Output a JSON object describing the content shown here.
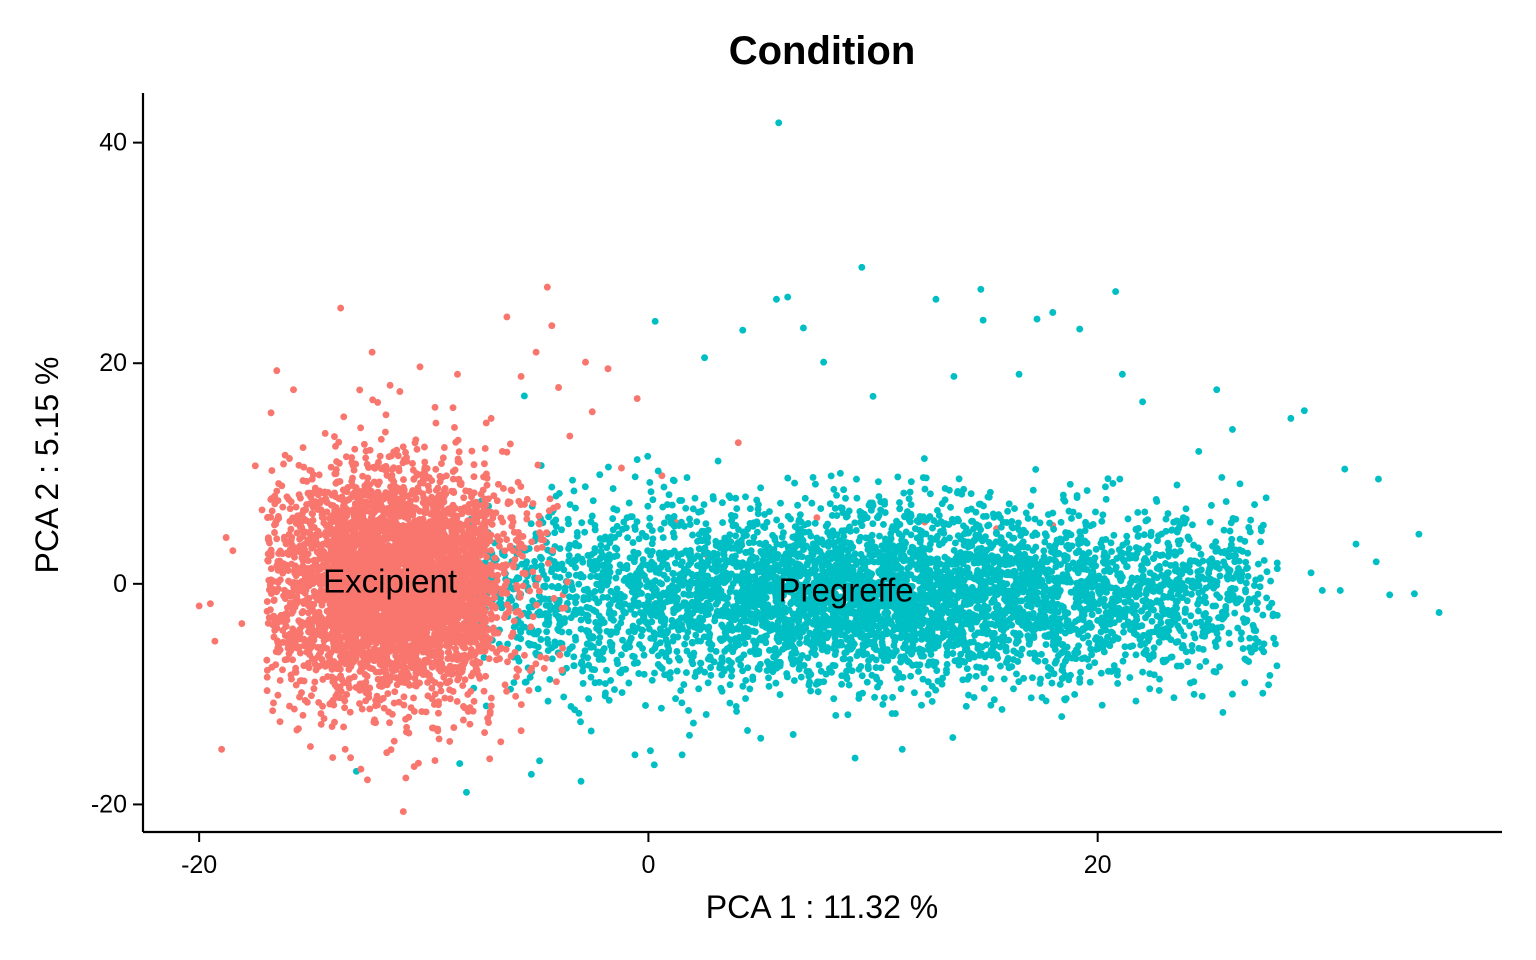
{
  "chart_data": {
    "type": "scatter",
    "title": "Condition",
    "xlabel": "PCA 1 : 11.32 %",
    "ylabel": "PCA 2 : 5.15 %",
    "xlim": [
      -22.5,
      38
    ],
    "ylim": [
      -22.5,
      44.5
    ],
    "x_ticks": [
      -20,
      0,
      20
    ],
    "y_ticks": [
      -20,
      0,
      20,
      40
    ],
    "x_tick_labels": [
      "-20",
      "0",
      "20"
    ],
    "y_tick_labels": [
      "-20",
      "0",
      "20",
      "40"
    ],
    "grid": false,
    "legend": "none",
    "series": [
      {
        "name": "Excipient",
        "color": "#F8766D",
        "center": [
          -11.5,
          0
        ],
        "spread": [
          3.0,
          5.5
        ],
        "points": [
          [
            -19.5,
            -1.8
          ],
          [
            -19.3,
            -5.2
          ],
          [
            -19.0,
            -15.0
          ],
          [
            -18.8,
            4.2
          ],
          [
            -18.5,
            3.0
          ],
          [
            -18.1,
            -3.6
          ],
          [
            -17.2,
            6.7
          ],
          [
            -16.8,
            15.5
          ],
          [
            -16.4,
            -12.5
          ],
          [
            -15.8,
            17.6
          ],
          [
            -13.7,
            25.0
          ],
          [
            -13.5,
            -15.0
          ],
          [
            -12.8,
            -16.8
          ],
          [
            -12.3,
            21.0
          ],
          [
            -11.5,
            18.0
          ],
          [
            -10.8,
            -17.6
          ],
          [
            -9.5,
            16.0
          ],
          [
            -8.5,
            19.0
          ],
          [
            -7.8,
            -3.8
          ],
          [
            -7.0,
            15.0
          ],
          [
            -6.3,
            24.2
          ],
          [
            -5.8,
            9.2
          ],
          [
            -5.0,
            21.0
          ],
          [
            -4.5,
            26.9
          ],
          [
            -4.3,
            23.4
          ],
          [
            -4.0,
            17.8
          ],
          [
            -3.5,
            13.4
          ],
          [
            -2.8,
            20.1
          ],
          [
            -2.5,
            15.6
          ],
          [
            -1.8,
            19.5
          ],
          [
            -1.2,
            10.5
          ],
          [
            -0.5,
            16.8
          ],
          [
            -0.3,
            0.7
          ],
          [
            0.3,
            -1.8
          ],
          [
            0.6,
            9.8
          ],
          [
            1.2,
            5.6
          ],
          [
            2.6,
            2.6
          ],
          [
            4.0,
            12.8
          ],
          [
            7.5,
            6.0
          ],
          [
            10.8,
            2.2
          ],
          [
            12.3,
            5.6
          ],
          [
            15.5,
            5.0
          ],
          [
            15.8,
            1.8
          ],
          [
            17.0,
            0.9
          ],
          [
            18.0,
            5.3
          ],
          [
            -3.8,
            -1.0
          ],
          [
            -6.5,
            12.0
          ],
          [
            -8.0,
            6.5
          ],
          [
            -20.0,
            -2.0
          ],
          [
            -17.5,
            10.7
          ]
        ]
      },
      {
        "name": "Pregreffe",
        "color": "#00BFC4",
        "center": [
          10,
          -1
        ],
        "spread": [
          8.5,
          4.0
        ],
        "points": [
          [
            5.8,
            41.8
          ],
          [
            9.5,
            28.7
          ],
          [
            5.7,
            25.8
          ],
          [
            6.2,
            26.0
          ],
          [
            12.8,
            25.8
          ],
          [
            14.8,
            26.7
          ],
          [
            20.8,
            26.5
          ],
          [
            18.0,
            24.6
          ],
          [
            17.3,
            24.0
          ],
          [
            19.2,
            23.1
          ],
          [
            6.9,
            23.2
          ],
          [
            14.9,
            23.9
          ],
          [
            21.1,
            19.0
          ],
          [
            25.3,
            17.6
          ],
          [
            26.0,
            14.0
          ],
          [
            28.6,
            15.0
          ],
          [
            29.2,
            15.7
          ],
          [
            31.0,
            10.4
          ],
          [
            32.5,
            9.5
          ],
          [
            34.3,
            4.5
          ],
          [
            35.2,
            -2.6
          ],
          [
            34.1,
            -0.9
          ],
          [
            30.8,
            -0.6
          ],
          [
            29.5,
            1.0
          ],
          [
            27.0,
            -5.6
          ],
          [
            24.2,
            -6.1
          ],
          [
            22.0,
            -8.0
          ],
          [
            20.2,
            -11.0
          ],
          [
            18.6,
            -10.4
          ],
          [
            15.4,
            -10.5
          ],
          [
            11.3,
            -15.0
          ],
          [
            9.2,
            -15.8
          ],
          [
            5.0,
            -14.0
          ],
          [
            1.5,
            -15.5
          ],
          [
            -0.6,
            -15.5
          ],
          [
            -3.0,
            -17.9
          ],
          [
            -8.1,
            -18.9
          ],
          [
            -8.4,
            -16.3
          ],
          [
            -10.6,
            -4.2
          ],
          [
            -13.0,
            -17.0
          ],
          [
            0.3,
            23.8
          ],
          [
            2.5,
            20.5
          ],
          [
            4.2,
            23.0
          ],
          [
            7.8,
            20.1
          ],
          [
            10.0,
            17.0
          ],
          [
            13.6,
            18.8
          ],
          [
            16.5,
            19.0
          ],
          [
            22.0,
            16.5
          ],
          [
            24.5,
            12.0
          ],
          [
            27.5,
            7.8
          ],
          [
            31.5,
            3.6
          ],
          [
            32.4,
            2.0
          ],
          [
            30.0,
            -0.6
          ],
          [
            33.0,
            -1.0
          ],
          [
            26.0,
            -10.0
          ]
        ]
      }
    ],
    "annotations": [
      {
        "text": "Excipient",
        "x": -11.5,
        "y": 0
      },
      {
        "text": "Pregreffe",
        "x": 8.8,
        "y": -0.8
      }
    ]
  }
}
